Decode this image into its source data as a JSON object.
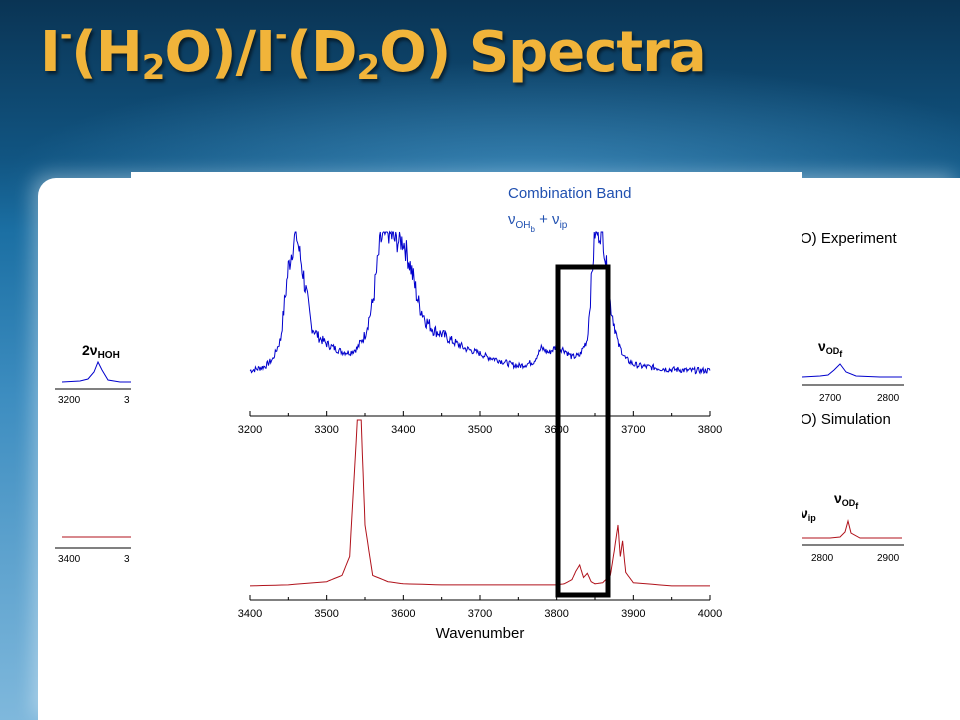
{
  "title": {
    "p1": "I",
    "sup1": "-",
    "p2": "(H",
    "sub1": "2",
    "p3": "O)/I",
    "sup2": "-",
    "p4": "(D",
    "sub2": "2",
    "p5": "O) Spectra"
  },
  "annotations": {
    "combo_title": "Combination Band",
    "combo_nu1": "ν",
    "combo_sub1": "OH",
    "combo_sub1b": "b",
    "combo_plus": " + ν",
    "combo_sub2": "ip",
    "left_top_2nu": "2ν",
    "left_top_sub": "HOH",
    "right_exp_label": "O) Experiment",
    "right_sim_label": "O) Simulation",
    "right_top_nu": "ν",
    "right_top_sub": "OD",
    "right_top_subsub": "f",
    "right_bot_nu": "ν",
    "right_bot_sub": "OD",
    "right_bot_subsub": "f",
    "right_bot_vip": "ν",
    "right_bot_vip_sub": "ip"
  },
  "colors": {
    "experiment": "#0000cc",
    "simulation": "#b0121b",
    "title": "#f1b43a",
    "highlight_box": "#000000"
  },
  "chart_data": [
    {
      "type": "line",
      "series": [
        {
          "x": [
            3200,
            3210,
            3220,
            3230,
            3240,
            3250,
            3260,
            3270,
            3280,
            3290,
            3300,
            3310,
            3320,
            3330,
            3340,
            3350,
            3360,
            3370,
            3380,
            3390,
            3400,
            3410,
            3420,
            3430,
            3440,
            3450,
            3460,
            3470,
            3480,
            3490,
            3500,
            3510,
            3520,
            3530,
            3540,
            3550,
            3560,
            3570,
            3580,
            3590,
            3600,
            3610,
            3620,
            3630,
            3640,
            3650,
            3660,
            3670,
            3680,
            3690,
            3700,
            3710,
            3720,
            3730,
            3740,
            3750,
            3760,
            3770,
            3780,
            3790,
            3800
          ],
          "y": [
            0.05,
            0.07,
            0.1,
            0.18,
            0.4,
            1.2,
            1.6,
            1.1,
            0.55,
            0.42,
            0.35,
            0.3,
            0.26,
            0.25,
            0.3,
            0.45,
            0.8,
            1.5,
            1.6,
            1.5,
            1.5,
            1.2,
            0.8,
            0.6,
            0.5,
            0.46,
            0.4,
            0.35,
            0.3,
            0.27,
            0.24,
            0.2,
            0.18,
            0.15,
            0.12,
            0.1,
            0.12,
            0.15,
            0.3,
            0.25,
            0.32,
            0.28,
            0.2,
            0.22,
            0.4,
            1.6,
            1.6,
            0.8,
            0.35,
            0.18,
            0.12,
            0.1,
            0.09,
            0.08,
            0.07,
            0.06,
            0.06,
            0.05,
            0.05,
            0.05,
            0.05
          ]
        }
      ],
      "xlim": [
        3200,
        3800
      ],
      "x_ticks": [
        "3200",
        "3300",
        "3400",
        "3500",
        "3600",
        "3700",
        "3800"
      ]
    },
    {
      "type": "line",
      "series": [
        {
          "x": [
            3400,
            3450,
            3500,
            3520,
            3530,
            3540,
            3545,
            3550,
            3560,
            3580,
            3600,
            3650,
            3700,
            3750,
            3800,
            3810,
            3820,
            3825,
            3830,
            3835,
            3840,
            3845,
            3850,
            3860,
            3870,
            3875,
            3880,
            3883,
            3886,
            3890,
            3900,
            3950,
            4000
          ],
          "y": [
            0.02,
            0.03,
            0.06,
            0.12,
            0.3,
            1.6,
            1.6,
            0.6,
            0.12,
            0.06,
            0.04,
            0.03,
            0.03,
            0.03,
            0.03,
            0.04,
            0.08,
            0.16,
            0.22,
            0.1,
            0.14,
            0.06,
            0.04,
            0.05,
            0.12,
            0.35,
            0.6,
            0.3,
            0.45,
            0.15,
            0.05,
            0.02,
            0.02
          ]
        }
      ],
      "xlim": [
        3400,
        4000
      ],
      "x_ticks": [
        "3400",
        "3500",
        "3600",
        "3700",
        "3800",
        "3900",
        "4000"
      ],
      "xlabel": "Wavenumber"
    },
    {
      "type": "line",
      "x_ticks": [
        "3200",
        "3"
      ]
    },
    {
      "type": "line",
      "x_ticks": [
        "3400",
        "3"
      ]
    },
    {
      "type": "line",
      "x_ticks": [
        "2700",
        "2800"
      ]
    },
    {
      "type": "line",
      "x_ticks": [
        "2800",
        "2900"
      ]
    }
  ]
}
